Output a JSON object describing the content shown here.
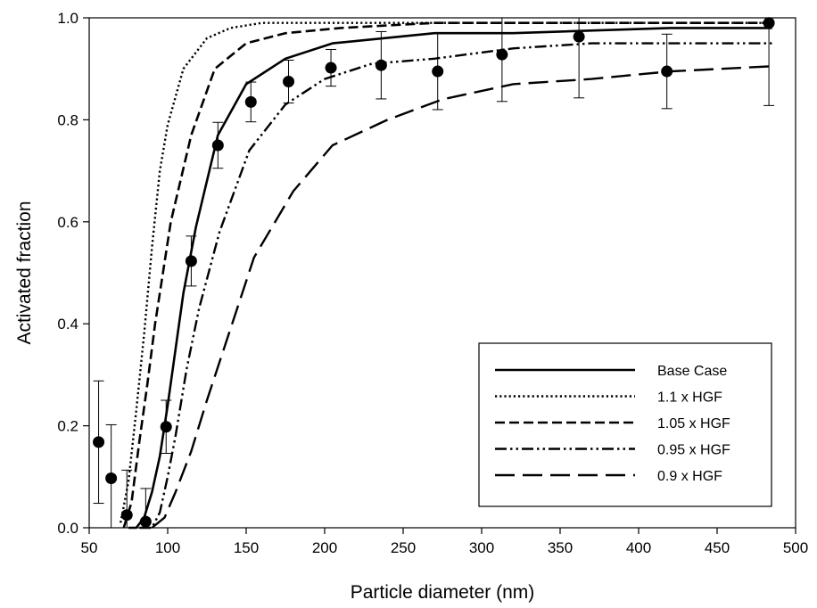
{
  "chart_data": {
    "type": "line",
    "title": "",
    "xlabel": "Particle diameter (nm)",
    "ylabel": "Activated fraction",
    "xlim": [
      50,
      500
    ],
    "ylim": [
      0,
      1.0
    ],
    "x_ticks": [
      "50",
      "100",
      "150",
      "200",
      "250",
      "300",
      "350",
      "400",
      "450",
      "500"
    ],
    "y_ticks": [
      "0.0",
      "0.2",
      "0.4",
      "0.6",
      "0.8",
      "1.0"
    ],
    "grid": false,
    "legend_position": "bottom-right",
    "series": [
      {
        "name": "Base Case",
        "style": "solid",
        "x": [
          75,
          80,
          85,
          90,
          95,
          100,
          110,
          118,
          132,
          150,
          175,
          205,
          270,
          320,
          420,
          485
        ],
        "y": [
          0.0,
          0.0,
          0.02,
          0.07,
          0.14,
          0.24,
          0.46,
          0.59,
          0.77,
          0.87,
          0.92,
          0.95,
          0.97,
          0.97,
          0.98,
          0.98
        ]
      },
      {
        "name": "1.1 x HGF",
        "style": "dotted",
        "x": [
          70,
          75,
          80,
          85,
          90,
          95,
          100,
          110,
          125,
          140,
          160,
          200,
          300,
          485
        ],
        "y": [
          0.01,
          0.09,
          0.23,
          0.38,
          0.55,
          0.7,
          0.79,
          0.9,
          0.96,
          0.98,
          0.99,
          0.99,
          0.99,
          0.99
        ]
      },
      {
        "name": "1.05 x HGF",
        "style": "dashed",
        "x": [
          72,
          77,
          82,
          87,
          92,
          97,
          102,
          115,
          130,
          150,
          175,
          210,
          270,
          400,
          485
        ],
        "y": [
          0.0,
          0.05,
          0.17,
          0.28,
          0.4,
          0.5,
          0.6,
          0.77,
          0.9,
          0.95,
          0.97,
          0.98,
          0.99,
          0.99,
          0.99
        ]
      },
      {
        "name": "0.95 x HGF",
        "style": "dash-dot-dot",
        "x": [
          82,
          90,
          95,
          100,
          105,
          112,
          120,
          133,
          152,
          175,
          200,
          230,
          270,
          320,
          370,
          420,
          485
        ],
        "y": [
          0.0,
          0.0,
          0.03,
          0.1,
          0.18,
          0.31,
          0.43,
          0.58,
          0.74,
          0.83,
          0.88,
          0.91,
          0.92,
          0.94,
          0.95,
          0.95,
          0.95
        ]
      },
      {
        "name": "0.9 x HGF",
        "style": "long-dash",
        "x": [
          90,
          98,
          105,
          115,
          125,
          140,
          155,
          180,
          205,
          240,
          275,
          320,
          370,
          420,
          485
        ],
        "y": [
          0.0,
          0.02,
          0.07,
          0.15,
          0.25,
          0.39,
          0.53,
          0.66,
          0.75,
          0.8,
          0.84,
          0.87,
          0.88,
          0.895,
          0.905
        ]
      }
    ],
    "observations": {
      "x": [
        56,
        64,
        74,
        86,
        99,
        115,
        132,
        153,
        177,
        204,
        236,
        272,
        313,
        362,
        418,
        483
      ],
      "y": [
        0.168,
        0.097,
        0.025,
        0.012,
        0.198,
        0.523,
        0.75,
        0.835,
        0.875,
        0.902,
        0.907,
        0.895,
        0.928,
        0.963,
        0.895,
        0.99
      ],
      "err": [
        0.12,
        0.105,
        0.088,
        0.065,
        0.052,
        0.049,
        0.045,
        0.039,
        0.042,
        0.036,
        0.066,
        0.075,
        0.092,
        0.12,
        0.073,
        0.162
      ]
    }
  }
}
